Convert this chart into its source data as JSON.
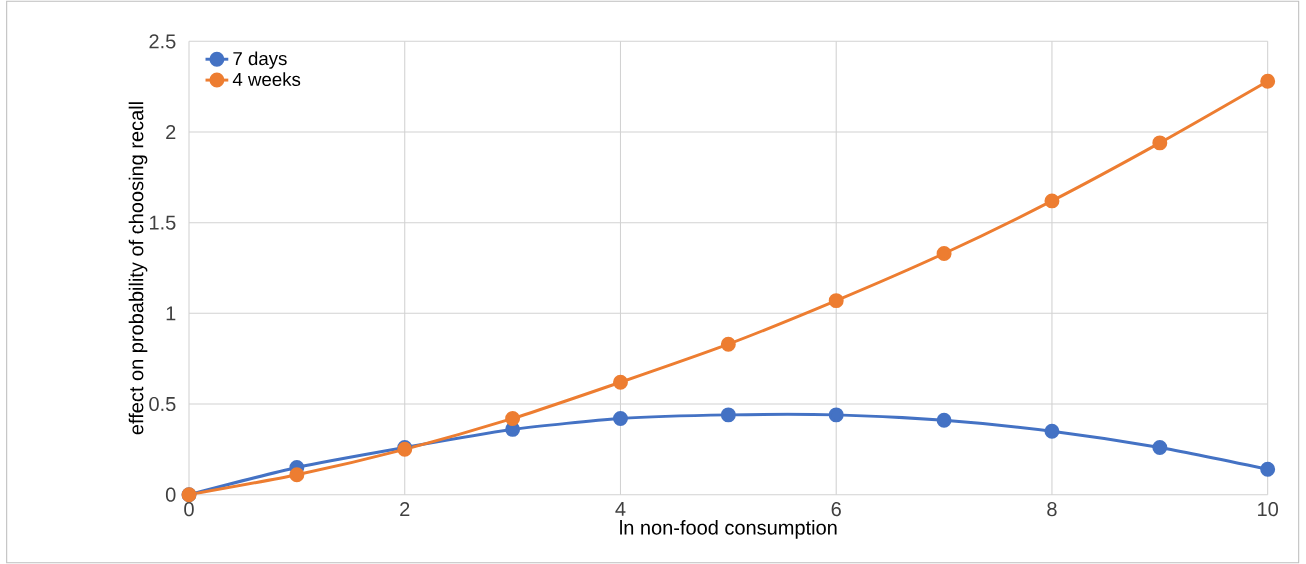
{
  "chart_data": {
    "type": "line",
    "xlabel": "ln non-food consumption",
    "ylabel": "effect on probability of choosing recall",
    "x": [
      0,
      1,
      2,
      3,
      4,
      5,
      6,
      7,
      8,
      9,
      10
    ],
    "series": [
      {
        "name": "7 days",
        "color": "#4472c4",
        "values": [
          0,
          0.15,
          0.26,
          0.36,
          0.42,
          0.44,
          0.44,
          0.41,
          0.35,
          0.26,
          0.14
        ]
      },
      {
        "name": "4 weeks",
        "color": "#ed7d31",
        "values": [
          0,
          0.11,
          0.25,
          0.42,
          0.62,
          0.83,
          1.07,
          1.33,
          1.62,
          1.94,
          2.28
        ]
      }
    ],
    "xlim": [
      0,
      10
    ],
    "xticks": [
      0,
      2,
      4,
      6,
      8,
      10
    ],
    "ylim": [
      0,
      2.5
    ],
    "yticks": [
      0,
      0.5,
      1,
      1.5,
      2,
      2.5
    ],
    "grid": true,
    "legend": "top left",
    "marker": "circle",
    "line_style": "solid"
  }
}
